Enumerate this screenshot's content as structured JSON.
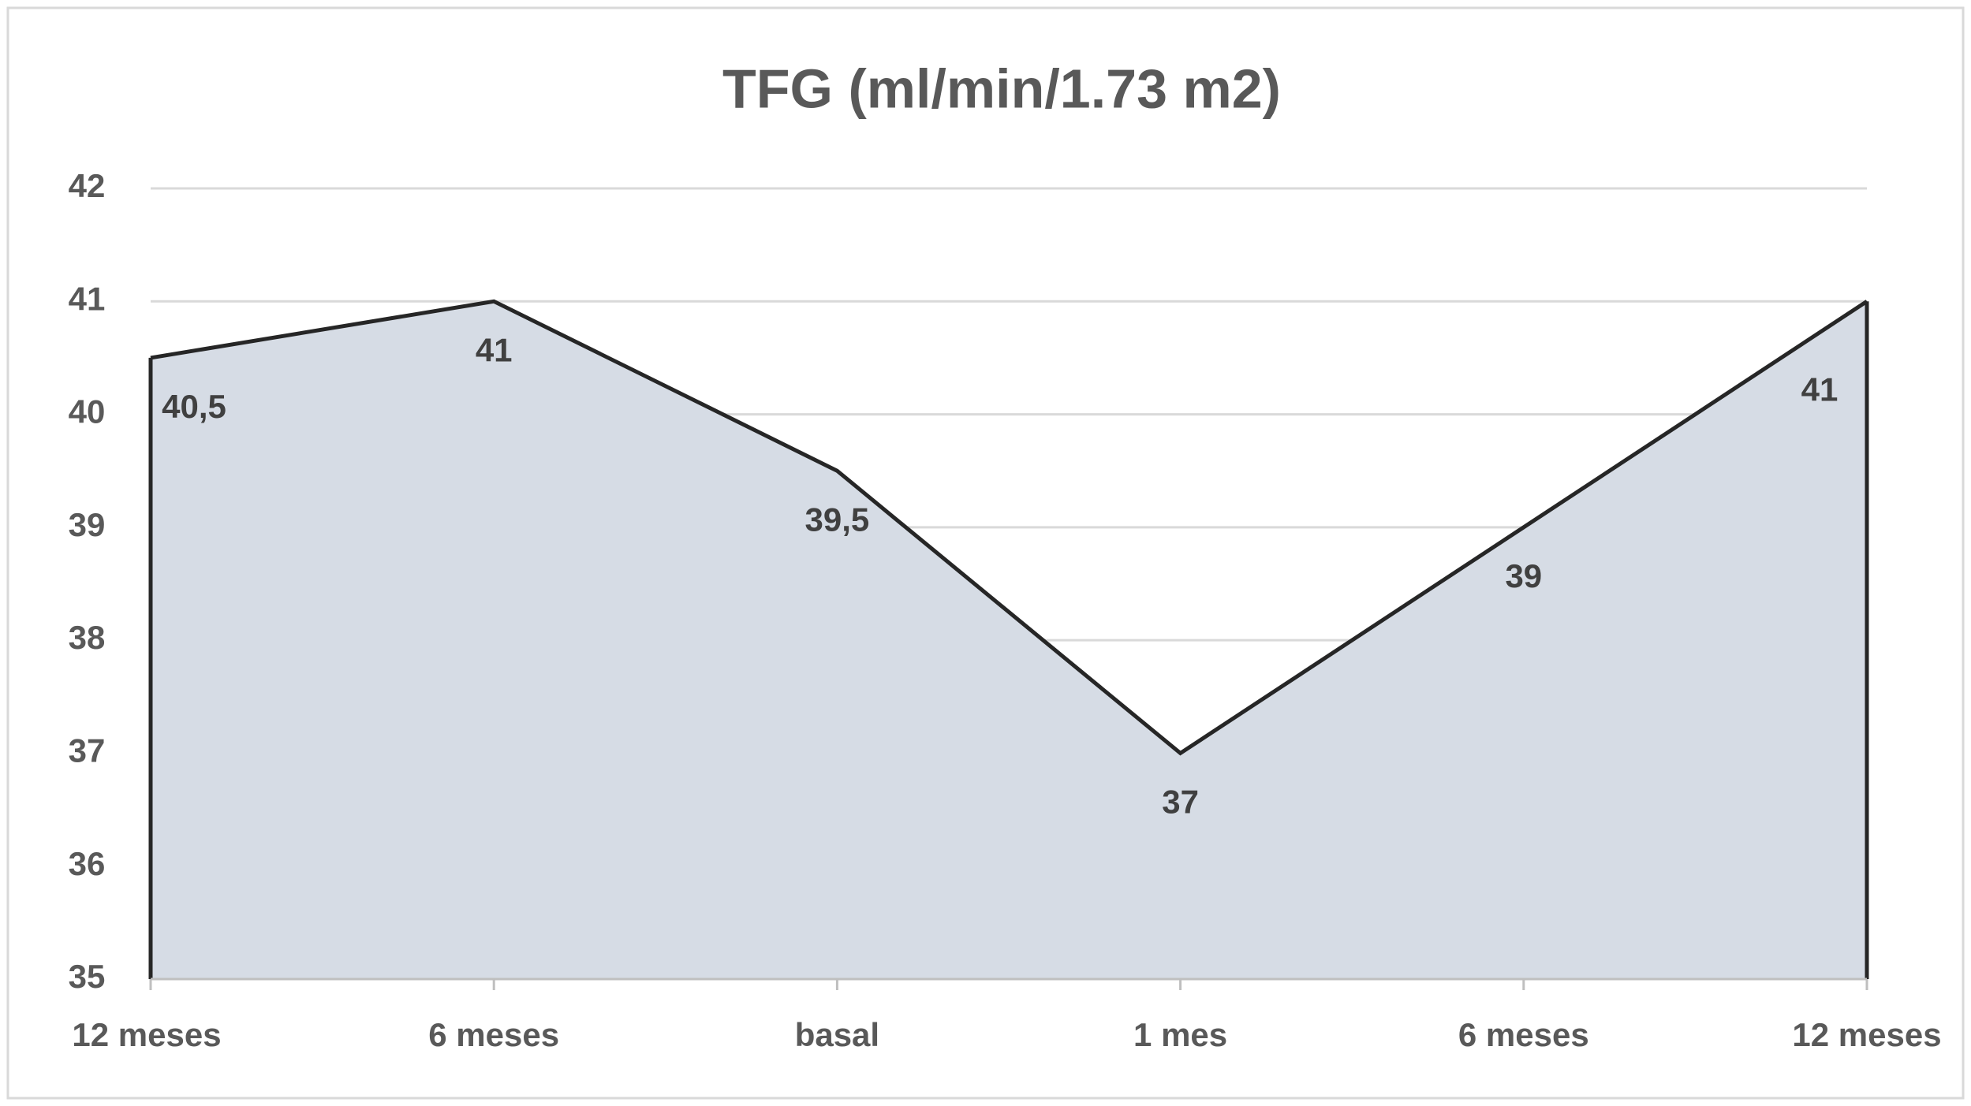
{
  "chart_data": {
    "type": "area",
    "title": "TFG (ml/min/1.73 m2)",
    "categories": [
      "12 meses",
      "6 meses",
      "basal",
      "1 mes",
      "6 meses",
      "12 meses"
    ],
    "values": [
      40.5,
      41,
      39.5,
      37,
      39,
      41
    ],
    "value_labels": [
      "40,5",
      "41",
      "39,5",
      "37",
      "39",
      "41"
    ],
    "color": "#d6dce5",
    "line_color": "#262626",
    "ylim": [
      35,
      42
    ],
    "yticks": [
      35,
      36,
      37,
      38,
      39,
      40,
      41,
      42
    ],
    "grid": true
  }
}
